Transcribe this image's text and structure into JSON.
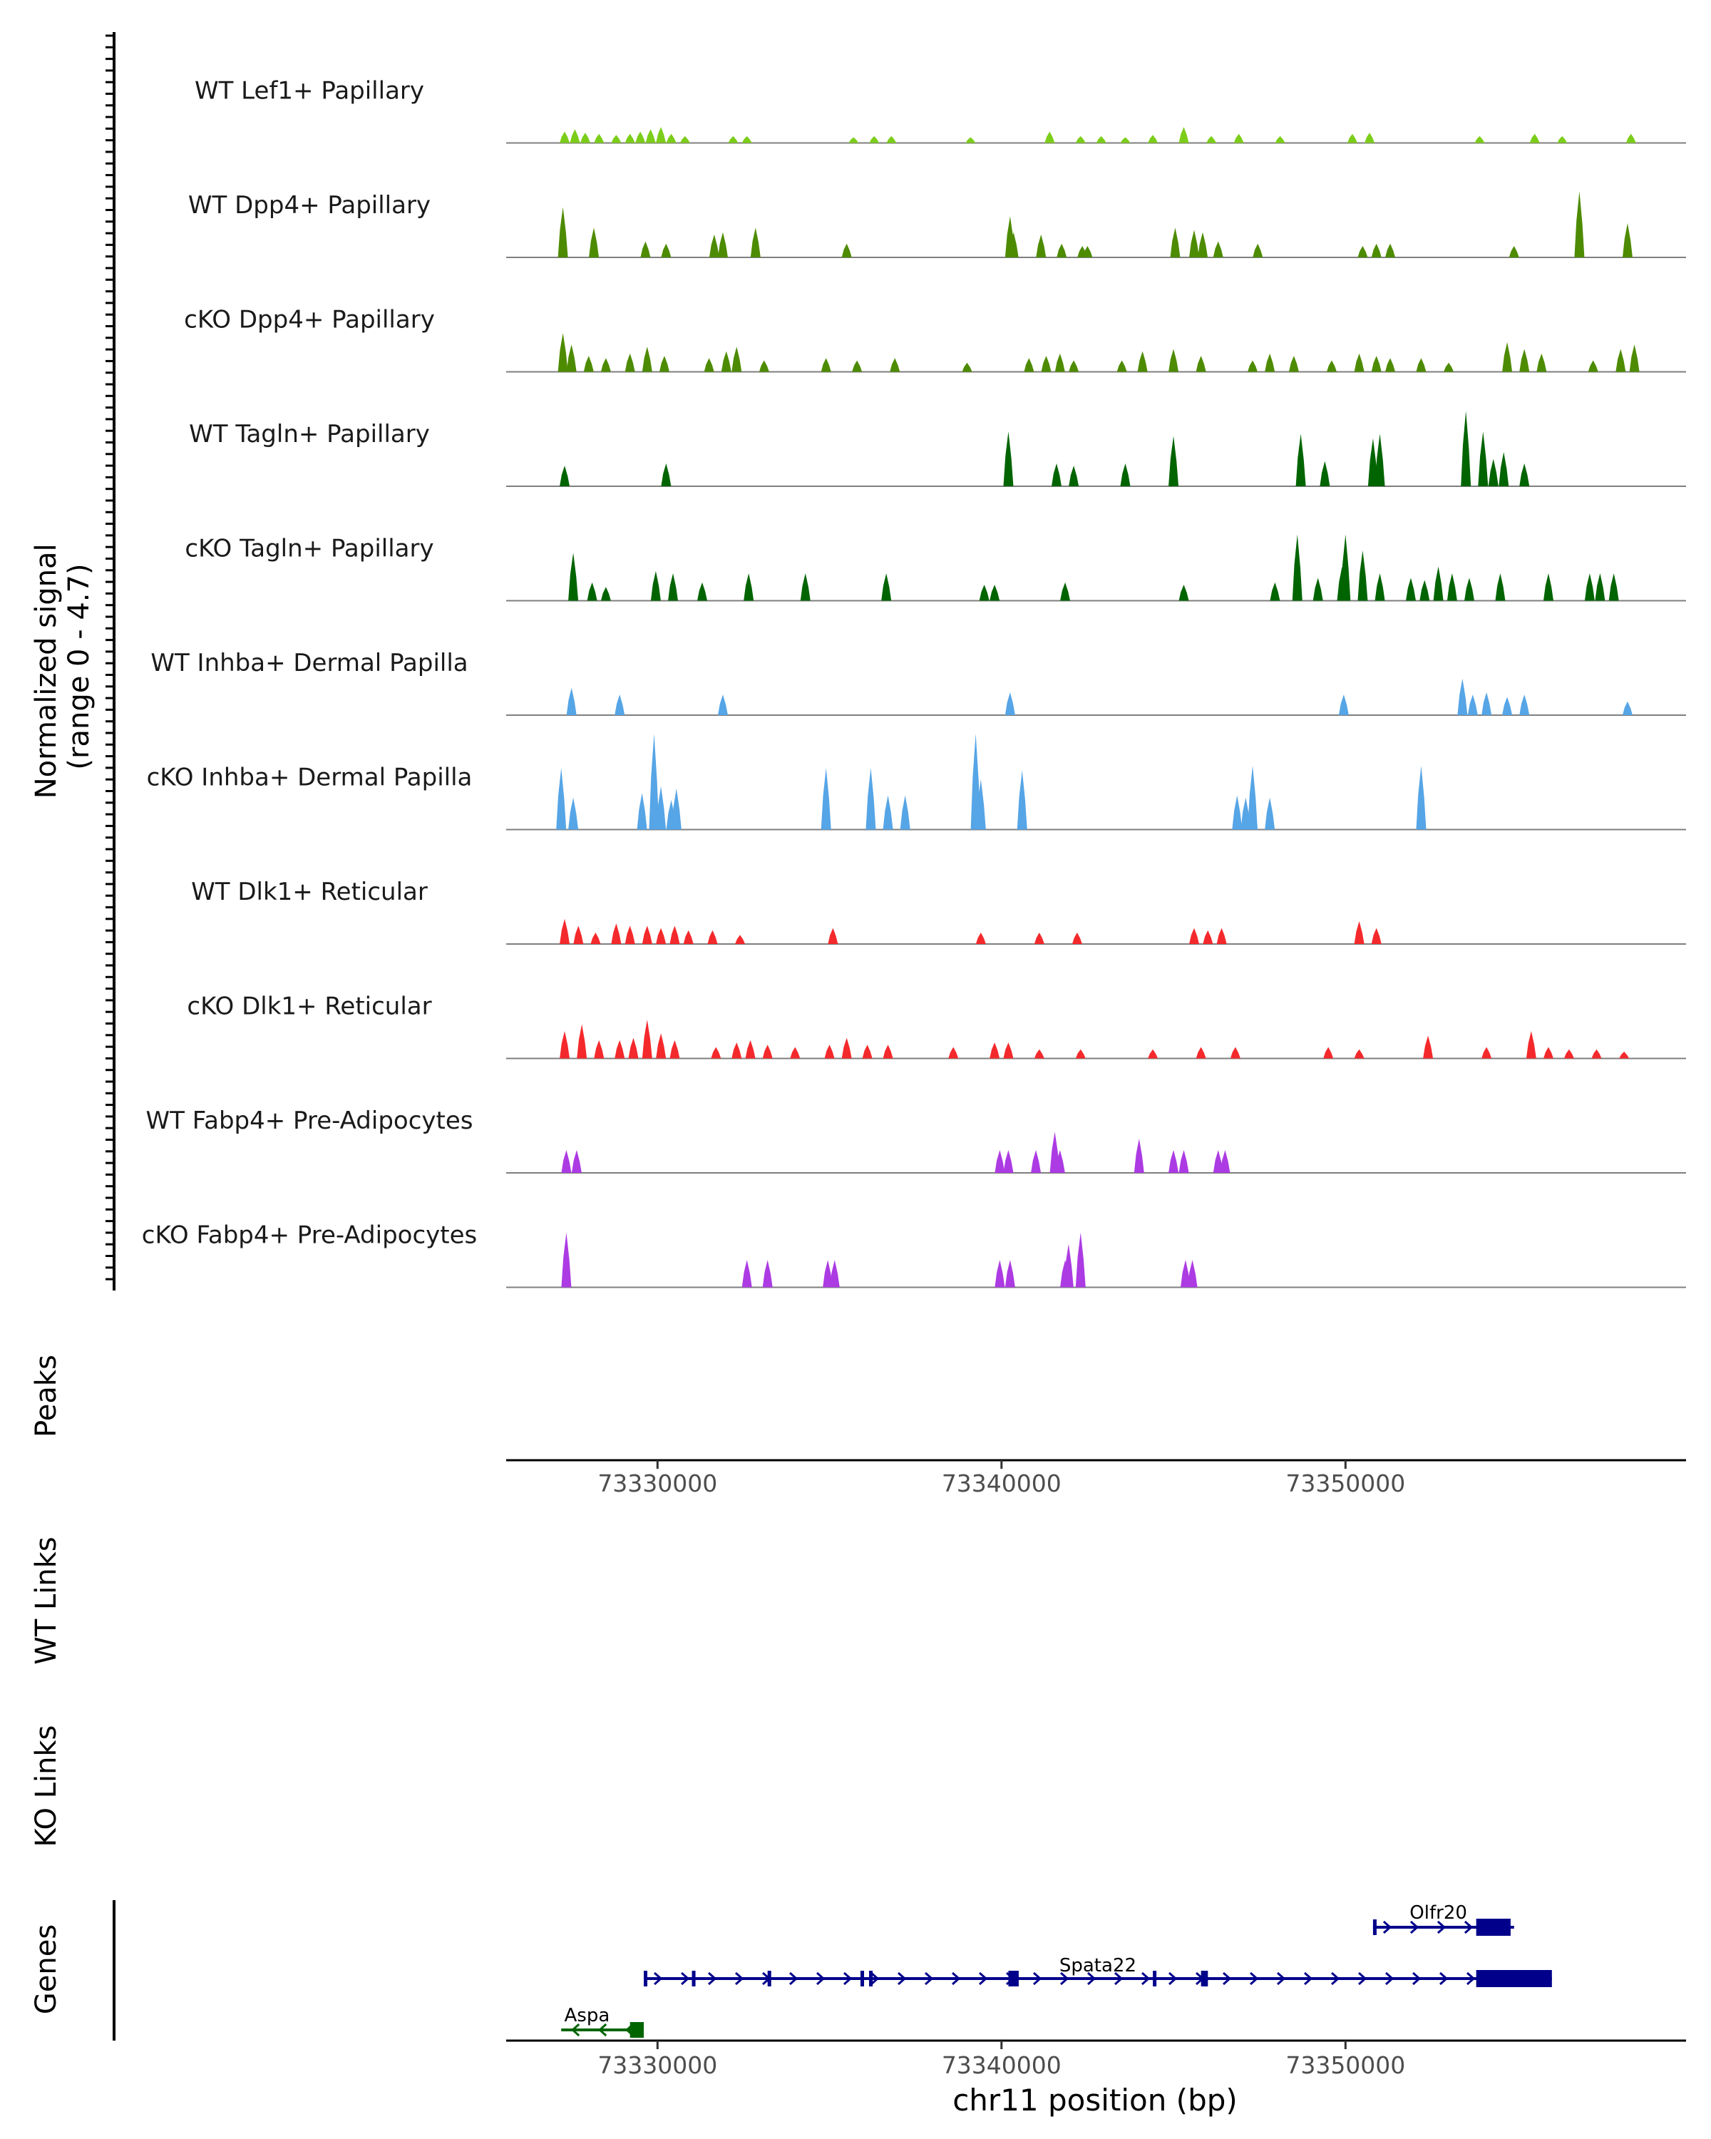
{
  "chart_data": {
    "type": "area",
    "title": "",
    "ylabel_line1": "Normalized signal",
    "ylabel_line2": "(range 0 - 4.7)",
    "ylim": [
      0,
      4.7
    ],
    "xlabel": "chr11 position (bp)",
    "xlim": [
      73325600,
      73359900
    ],
    "xticks": [
      73330000,
      73340000,
      73350000
    ],
    "xtick_labels": [
      "73330000",
      "73340000",
      "73350000"
    ],
    "track_labels": {
      "peaks": "Peaks",
      "wt_links": "WT Links",
      "ko_links": "KO Links",
      "genes": "Genes"
    },
    "tracks": [
      {
        "name": "WT Lef1+ Papillary",
        "color": "#7CCD1A",
        "peaks": [
          [
            73327300,
            0.5
          ],
          [
            73327600,
            0.6
          ],
          [
            73327900,
            0.45
          ],
          [
            73328300,
            0.4
          ],
          [
            73328800,
            0.35
          ],
          [
            73329200,
            0.4
          ],
          [
            73329500,
            0.5
          ],
          [
            73329800,
            0.6
          ],
          [
            73330100,
            0.7
          ],
          [
            73330400,
            0.4
          ],
          [
            73330800,
            0.3
          ],
          [
            73332200,
            0.3
          ],
          [
            73332600,
            0.3
          ],
          [
            73335700,
            0.25
          ],
          [
            73336300,
            0.3
          ],
          [
            73336800,
            0.3
          ],
          [
            73339100,
            0.25
          ],
          [
            73341400,
            0.5
          ],
          [
            73342300,
            0.3
          ],
          [
            73342900,
            0.3
          ],
          [
            73343600,
            0.25
          ],
          [
            73344400,
            0.35
          ],
          [
            73345300,
            0.7
          ],
          [
            73346100,
            0.3
          ],
          [
            73346900,
            0.4
          ],
          [
            73348100,
            0.3
          ],
          [
            73350200,
            0.4
          ],
          [
            73350700,
            0.45
          ],
          [
            73353900,
            0.3
          ],
          [
            73355500,
            0.4
          ],
          [
            73356300,
            0.3
          ],
          [
            73358300,
            0.4
          ]
        ]
      },
      {
        "name": "WT Dpp4+ Papillary",
        "color": "#4D8B00",
        "peaks": [
          [
            73327250,
            2.2
          ],
          [
            73328150,
            1.3
          ],
          [
            73329650,
            0.7
          ],
          [
            73330250,
            0.6
          ],
          [
            73331650,
            1.0
          ],
          [
            73331900,
            1.1
          ],
          [
            73332850,
            1.3
          ],
          [
            73335500,
            0.6
          ],
          [
            73340250,
            1.8
          ],
          [
            73340350,
            1.1
          ],
          [
            73341150,
            1.0
          ],
          [
            73341750,
            0.6
          ],
          [
            73342350,
            0.5
          ],
          [
            73342500,
            0.5
          ],
          [
            73345050,
            1.3
          ],
          [
            73345600,
            1.2
          ],
          [
            73345850,
            1.1
          ],
          [
            73346300,
            0.7
          ],
          [
            73347450,
            0.6
          ],
          [
            73350500,
            0.5
          ],
          [
            73350900,
            0.6
          ],
          [
            73351300,
            0.6
          ],
          [
            73354900,
            0.5
          ],
          [
            73356800,
            2.9
          ],
          [
            73358200,
            1.5
          ]
        ]
      },
      {
        "name": "cKO Dpp4+ Papillary",
        "color": "#4D8B00",
        "peaks": [
          [
            73327250,
            1.7
          ],
          [
            73327500,
            1.2
          ],
          [
            73328000,
            0.7
          ],
          [
            73328500,
            0.6
          ],
          [
            73329200,
            0.8
          ],
          [
            73329700,
            1.1
          ],
          [
            73330200,
            0.7
          ],
          [
            73331500,
            0.6
          ],
          [
            73332000,
            0.9
          ],
          [
            73332300,
            1.1
          ],
          [
            73333100,
            0.5
          ],
          [
            73334900,
            0.6
          ],
          [
            73335800,
            0.5
          ],
          [
            73336900,
            0.6
          ],
          [
            73339000,
            0.4
          ],
          [
            73340800,
            0.6
          ],
          [
            73341300,
            0.7
          ],
          [
            73341700,
            0.8
          ],
          [
            73342100,
            0.5
          ],
          [
            73343500,
            0.5
          ],
          [
            73344100,
            0.9
          ],
          [
            73345000,
            1.0
          ],
          [
            73345800,
            0.7
          ],
          [
            73347300,
            0.5
          ],
          [
            73347800,
            0.8
          ],
          [
            73348500,
            0.7
          ],
          [
            73349600,
            0.5
          ],
          [
            73350400,
            0.8
          ],
          [
            73350900,
            0.7
          ],
          [
            73351300,
            0.6
          ],
          [
            73352200,
            0.6
          ],
          [
            73353000,
            0.4
          ],
          [
            73354700,
            1.3
          ],
          [
            73355200,
            1.0
          ],
          [
            73355700,
            0.8
          ],
          [
            73357200,
            0.5
          ],
          [
            73358000,
            1.0
          ],
          [
            73358400,
            1.2
          ]
        ]
      },
      {
        "name": "WT Tagln+ Papillary",
        "color": "#006400",
        "peaks": [
          [
            73327300,
            0.9
          ],
          [
            73330250,
            1.0
          ],
          [
            73340200,
            2.4
          ],
          [
            73341600,
            1.0
          ],
          [
            73342100,
            0.9
          ],
          [
            73343600,
            1.0
          ],
          [
            73345000,
            2.2
          ],
          [
            73348700,
            2.3
          ],
          [
            73349400,
            1.1
          ],
          [
            73350800,
            2.1
          ],
          [
            73351000,
            2.3
          ],
          [
            73353500,
            3.3
          ],
          [
            73354000,
            2.4
          ],
          [
            73354300,
            1.2
          ],
          [
            73354600,
            1.5
          ],
          [
            73355200,
            1.0
          ]
        ]
      },
      {
        "name": "cKO Tagln+ Papillary",
        "color": "#006400",
        "peaks": [
          [
            73327550,
            2.1
          ],
          [
            73328100,
            0.8
          ],
          [
            73328500,
            0.6
          ],
          [
            73329950,
            1.3
          ],
          [
            73330450,
            1.2
          ],
          [
            73331300,
            0.8
          ],
          [
            73332650,
            1.2
          ],
          [
            73334300,
            1.2
          ],
          [
            73336650,
            1.2
          ],
          [
            73339500,
            0.7
          ],
          [
            73339800,
            0.7
          ],
          [
            73341850,
            0.8
          ],
          [
            73345300,
            0.7
          ],
          [
            73347950,
            0.8
          ],
          [
            73348600,
            2.9
          ],
          [
            73349200,
            1.0
          ],
          [
            73349900,
            1.5
          ],
          [
            73350000,
            2.9
          ],
          [
            73350500,
            2.2
          ],
          [
            73351000,
            1.2
          ],
          [
            73351900,
            1.0
          ],
          [
            73352300,
            0.9
          ],
          [
            73352700,
            1.5
          ],
          [
            73353100,
            1.2
          ],
          [
            73353600,
            1.0
          ],
          [
            73354500,
            1.2
          ],
          [
            73355900,
            1.2
          ],
          [
            73357100,
            1.2
          ],
          [
            73357400,
            1.2
          ],
          [
            73357800,
            1.2
          ]
        ]
      },
      {
        "name": "WT Inhba+ Dermal Papilla",
        "color": "#56A5E6",
        "peaks": [
          [
            73327500,
            1.2
          ],
          [
            73328900,
            0.9
          ],
          [
            73331900,
            0.9
          ],
          [
            73340250,
            1.0
          ],
          [
            73349950,
            0.9
          ],
          [
            73353400,
            1.6
          ],
          [
            73353700,
            0.9
          ],
          [
            73354100,
            1.0
          ],
          [
            73354700,
            0.8
          ],
          [
            73355200,
            0.9
          ],
          [
            73358200,
            0.6
          ]
        ]
      },
      {
        "name": "cKO Inhba+ Dermal Papilla",
        "color": "#56A5E6",
        "peaks": [
          [
            73327200,
            2.7
          ],
          [
            73327550,
            1.4
          ],
          [
            73329550,
            1.6
          ],
          [
            73329900,
            4.2
          ],
          [
            73330100,
            1.9
          ],
          [
            73330400,
            1.3
          ],
          [
            73330550,
            1.8
          ],
          [
            73334900,
            2.7
          ],
          [
            73336200,
            2.7
          ],
          [
            73336700,
            1.5
          ],
          [
            73337200,
            1.5
          ],
          [
            73339250,
            4.2
          ],
          [
            73339400,
            2.2
          ],
          [
            73340600,
            2.6
          ],
          [
            73346850,
            1.5
          ],
          [
            73347100,
            1.4
          ],
          [
            73347300,
            2.8
          ],
          [
            73347800,
            1.4
          ],
          [
            73352200,
            2.8
          ]
        ]
      },
      {
        "name": "WT Dlk1+ Reticular",
        "color": "#F4292C",
        "peaks": [
          [
            73327300,
            1.1
          ],
          [
            73327700,
            0.8
          ],
          [
            73328200,
            0.5
          ],
          [
            73328800,
            0.9
          ],
          [
            73329200,
            0.8
          ],
          [
            73329700,
            0.8
          ],
          [
            73330100,
            0.7
          ],
          [
            73330500,
            0.8
          ],
          [
            73330900,
            0.6
          ],
          [
            73331600,
            0.6
          ],
          [
            73332400,
            0.4
          ],
          [
            73335100,
            0.7
          ],
          [
            73339400,
            0.5
          ],
          [
            73341100,
            0.5
          ],
          [
            73342200,
            0.5
          ],
          [
            73345600,
            0.7
          ],
          [
            73346000,
            0.6
          ],
          [
            73346400,
            0.7
          ],
          [
            73350400,
            1.0
          ],
          [
            73350900,
            0.7
          ]
        ]
      },
      {
        "name": "cKO Dlk1+ Reticular",
        "color": "#F4292C",
        "peaks": [
          [
            73327300,
            1.2
          ],
          [
            73327800,
            1.5
          ],
          [
            73328300,
            0.8
          ],
          [
            73328900,
            0.8
          ],
          [
            73329300,
            0.9
          ],
          [
            73329700,
            1.7
          ],
          [
            73330100,
            1.1
          ],
          [
            73330500,
            0.8
          ],
          [
            73331700,
            0.5
          ],
          [
            73332300,
            0.7
          ],
          [
            73332700,
            0.8
          ],
          [
            73333200,
            0.6
          ],
          [
            73334000,
            0.5
          ],
          [
            73335000,
            0.6
          ],
          [
            73335500,
            0.9
          ],
          [
            73336100,
            0.6
          ],
          [
            73336700,
            0.6
          ],
          [
            73338600,
            0.5
          ],
          [
            73339800,
            0.7
          ],
          [
            73340200,
            0.7
          ],
          [
            73341100,
            0.4
          ],
          [
            73342300,
            0.4
          ],
          [
            73344400,
            0.4
          ],
          [
            73345800,
            0.5
          ],
          [
            73346800,
            0.5
          ],
          [
            73349500,
            0.5
          ],
          [
            73350400,
            0.4
          ],
          [
            73352400,
            1.0
          ],
          [
            73354100,
            0.5
          ],
          [
            73355400,
            1.2
          ],
          [
            73355900,
            0.5
          ],
          [
            73356500,
            0.4
          ],
          [
            73357300,
            0.4
          ],
          [
            73358100,
            0.3
          ]
        ]
      },
      {
        "name": "WT Fabp4+ Pre-Adipocytes",
        "color": "#AC3BE3",
        "peaks": [
          [
            73327350,
            1.0
          ],
          [
            73327650,
            1.0
          ],
          [
            73339950,
            1.0
          ],
          [
            73340200,
            1.0
          ],
          [
            73341000,
            1.0
          ],
          [
            73341550,
            1.8
          ],
          [
            73341700,
            1.0
          ],
          [
            73344000,
            1.5
          ],
          [
            73345000,
            1.0
          ],
          [
            73345300,
            1.0
          ],
          [
            73346300,
            1.0
          ],
          [
            73346500,
            1.0
          ]
        ]
      },
      {
        "name": "cKO Fabp4+ Pre-Adipocytes",
        "color": "#AC3BE3",
        "peaks": [
          [
            73327350,
            2.4
          ],
          [
            73332600,
            1.2
          ],
          [
            73333200,
            1.2
          ],
          [
            73334950,
            1.2
          ],
          [
            73335150,
            1.2
          ],
          [
            73339950,
            1.2
          ],
          [
            73340250,
            1.2
          ],
          [
            73341850,
            1.2
          ],
          [
            73341950,
            1.9
          ],
          [
            73342300,
            2.4
          ],
          [
            73345350,
            1.2
          ],
          [
            73345550,
            1.2
          ]
        ]
      }
    ],
    "genes": [
      {
        "name": "Olfr20",
        "strand": "+",
        "color": "#00008B",
        "start": 73350800,
        "end": 73354900,
        "exons": [
          [
            73350800,
            73350900
          ],
          [
            73353800,
            73354800
          ]
        ]
      },
      {
        "name": "Spata22",
        "strand": "+",
        "color": "#00008B",
        "start": 73329600,
        "end": 73356000,
        "exons": [
          [
            73329600,
            73329700
          ],
          [
            73331000,
            73331100
          ],
          [
            73333200,
            73333300
          ],
          [
            73335900,
            73336000
          ],
          [
            73336150,
            73336250
          ],
          [
            73340200,
            73340500
          ],
          [
            73344400,
            73344500
          ],
          [
            73345800,
            73346000
          ],
          [
            73353800,
            73356000
          ]
        ]
      },
      {
        "name": "Aspa",
        "strand": "-",
        "color": "#006400",
        "start": 73327200,
        "end": 73329600,
        "exons": [
          [
            73329200,
            73329600
          ]
        ]
      }
    ]
  }
}
